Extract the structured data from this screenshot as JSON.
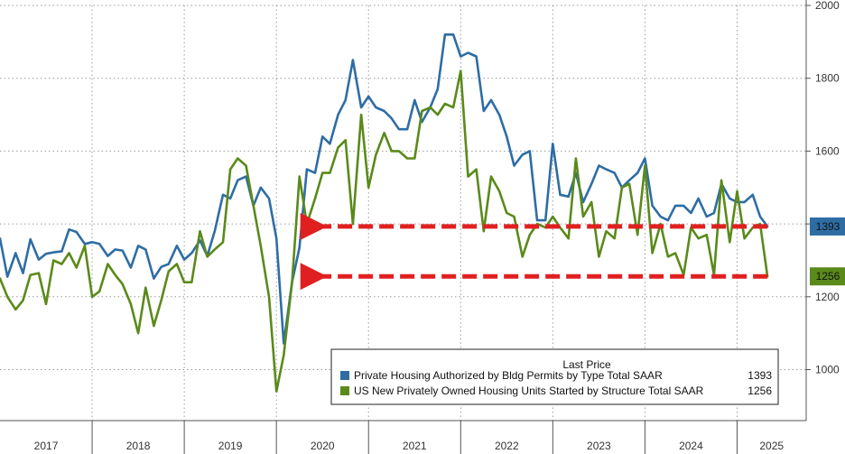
{
  "chart_data": {
    "type": "line",
    "title": "",
    "xlabel": "",
    "ylabel": "",
    "ylim": [
      860,
      2000
    ],
    "yticks": [
      1000,
      1200,
      1400,
      1600,
      1800,
      2000
    ],
    "xlim": [
      2017.0,
      2025.75
    ],
    "x_tick_labels": [
      "2017",
      "2018",
      "2019",
      "2020",
      "2021",
      "2022",
      "2023",
      "2024",
      "2025"
    ],
    "grid": true,
    "legend": {
      "title": "Last Price",
      "placement": "bottom-right"
    },
    "series": [
      {
        "name": "Private Housing Authorized by Bldg Permits by Type Total SAAR",
        "last_value": "1393",
        "color": "#2e6da4",
        "x": [
          2017.0,
          2017.08,
          2017.17,
          2017.25,
          2017.33,
          2017.42,
          2017.5,
          2017.58,
          2017.67,
          2017.75,
          2017.83,
          2017.92,
          2018.0,
          2018.08,
          2018.17,
          2018.25,
          2018.33,
          2018.42,
          2018.5,
          2018.58,
          2018.67,
          2018.75,
          2018.83,
          2018.92,
          2019.0,
          2019.08,
          2019.17,
          2019.25,
          2019.33,
          2019.42,
          2019.5,
          2019.58,
          2019.67,
          2019.75,
          2019.83,
          2019.92,
          2020.0,
          2020.08,
          2020.17,
          2020.25,
          2020.33,
          2020.42,
          2020.5,
          2020.58,
          2020.67,
          2020.75,
          2020.83,
          2020.92,
          2021.0,
          2021.08,
          2021.17,
          2021.25,
          2021.33,
          2021.42,
          2021.5,
          2021.58,
          2021.67,
          2021.75,
          2021.83,
          2021.92,
          2022.0,
          2022.08,
          2022.17,
          2022.25,
          2022.33,
          2022.42,
          2022.5,
          2022.58,
          2022.67,
          2022.75,
          2022.83,
          2022.92,
          2023.0,
          2023.08,
          2023.17,
          2023.25,
          2023.33,
          2023.42,
          2023.5,
          2023.58,
          2023.67,
          2023.75,
          2023.83,
          2023.92,
          2024.0,
          2024.08,
          2024.17,
          2024.25,
          2024.33,
          2024.42,
          2024.5,
          2024.58,
          2024.67,
          2024.75,
          2024.83,
          2024.92,
          2025.0,
          2025.08,
          2025.17,
          2025.25,
          2025.33
        ],
        "values": [
          1360,
          1255,
          1320,
          1265,
          1358,
          1302,
          1318,
          1322,
          1325,
          1385,
          1378,
          1345,
          1350,
          1345,
          1312,
          1330,
          1327,
          1280,
          1340,
          1330,
          1250,
          1282,
          1290,
          1340,
          1302,
          1320,
          1355,
          1312,
          1380,
          1480,
          1470,
          1520,
          1530,
          1450,
          1500,
          1470,
          1360,
          1072,
          1240,
          1335,
          1550,
          1540,
          1640,
          1620,
          1700,
          1740,
          1850,
          1720,
          1750,
          1720,
          1710,
          1690,
          1660,
          1660,
          1740,
          1680,
          1720,
          1770,
          1920,
          1920,
          1860,
          1870,
          1860,
          1710,
          1740,
          1700,
          1640,
          1560,
          1590,
          1600,
          1410,
          1410,
          1620,
          1480,
          1475,
          1540,
          1460,
          1510,
          1560,
          1550,
          1540,
          1500,
          1520,
          1540,
          1580,
          1450,
          1420,
          1410,
          1450,
          1450,
          1430,
          1470,
          1420,
          1430,
          1510,
          1470,
          1460,
          1460,
          1480,
          1420,
          1393
        ]
      },
      {
        "name": "US New Privately Owned Housing Units Started by Structure Total SAAR",
        "last_value": "1256",
        "color": "#5a8a1a",
        "x": [
          2017.0,
          2017.08,
          2017.17,
          2017.25,
          2017.33,
          2017.42,
          2017.5,
          2017.58,
          2017.67,
          2017.75,
          2017.83,
          2017.92,
          2018.0,
          2018.08,
          2018.17,
          2018.25,
          2018.33,
          2018.42,
          2018.5,
          2018.58,
          2018.67,
          2018.75,
          2018.83,
          2018.92,
          2019.0,
          2019.08,
          2019.17,
          2019.25,
          2019.33,
          2019.42,
          2019.5,
          2019.58,
          2019.67,
          2019.75,
          2019.83,
          2019.92,
          2020.0,
          2020.08,
          2020.17,
          2020.25,
          2020.33,
          2020.42,
          2020.5,
          2020.58,
          2020.67,
          2020.75,
          2020.83,
          2020.92,
          2021.0,
          2021.08,
          2021.17,
          2021.25,
          2021.33,
          2021.42,
          2021.5,
          2021.58,
          2021.67,
          2021.75,
          2021.83,
          2021.92,
          2022.0,
          2022.08,
          2022.17,
          2022.25,
          2022.33,
          2022.42,
          2022.5,
          2022.58,
          2022.67,
          2022.75,
          2022.83,
          2022.92,
          2023.0,
          2023.08,
          2023.17,
          2023.25,
          2023.33,
          2023.42,
          2023.5,
          2023.58,
          2023.67,
          2023.75,
          2023.83,
          2023.92,
          2024.0,
          2024.08,
          2024.17,
          2024.25,
          2024.33,
          2024.42,
          2024.5,
          2024.58,
          2024.67,
          2024.75,
          2024.83,
          2024.92,
          2025.0,
          2025.08,
          2025.17,
          2025.25,
          2025.33
        ],
        "values": [
          1250,
          1200,
          1165,
          1190,
          1260,
          1265,
          1180,
          1300,
          1290,
          1320,
          1280,
          1340,
          1200,
          1215,
          1290,
          1260,
          1235,
          1180,
          1100,
          1225,
          1120,
          1190,
          1270,
          1290,
          1240,
          1240,
          1380,
          1310,
          1330,
          1350,
          1550,
          1580,
          1560,
          1450,
          1340,
          1200,
          940,
          1040,
          1240,
          1530,
          1400,
          1470,
          1540,
          1540,
          1610,
          1630,
          1400,
          1700,
          1500,
          1590,
          1650,
          1600,
          1600,
          1580,
          1580,
          1710,
          1720,
          1700,
          1730,
          1720,
          1820,
          1530,
          1550,
          1380,
          1530,
          1490,
          1430,
          1420,
          1310,
          1370,
          1400,
          1390,
          1420,
          1390,
          1360,
          1580,
          1420,
          1460,
          1310,
          1380,
          1360,
          1500,
          1510,
          1370,
          1560,
          1320,
          1400,
          1310,
          1320,
          1260,
          1390,
          1360,
          1370,
          1260,
          1520,
          1350,
          1490,
          1360,
          1390,
          1400,
          1256
        ]
      }
    ],
    "annotations": [
      {
        "type": "dashed-arrow",
        "color": "#e02020",
        "y": 1393,
        "x_start": 2025.33,
        "x_end": 2020.25
      },
      {
        "type": "dashed-arrow",
        "color": "#e02020",
        "y": 1256,
        "x_start": 2025.33,
        "x_end": 2020.25
      }
    ]
  }
}
